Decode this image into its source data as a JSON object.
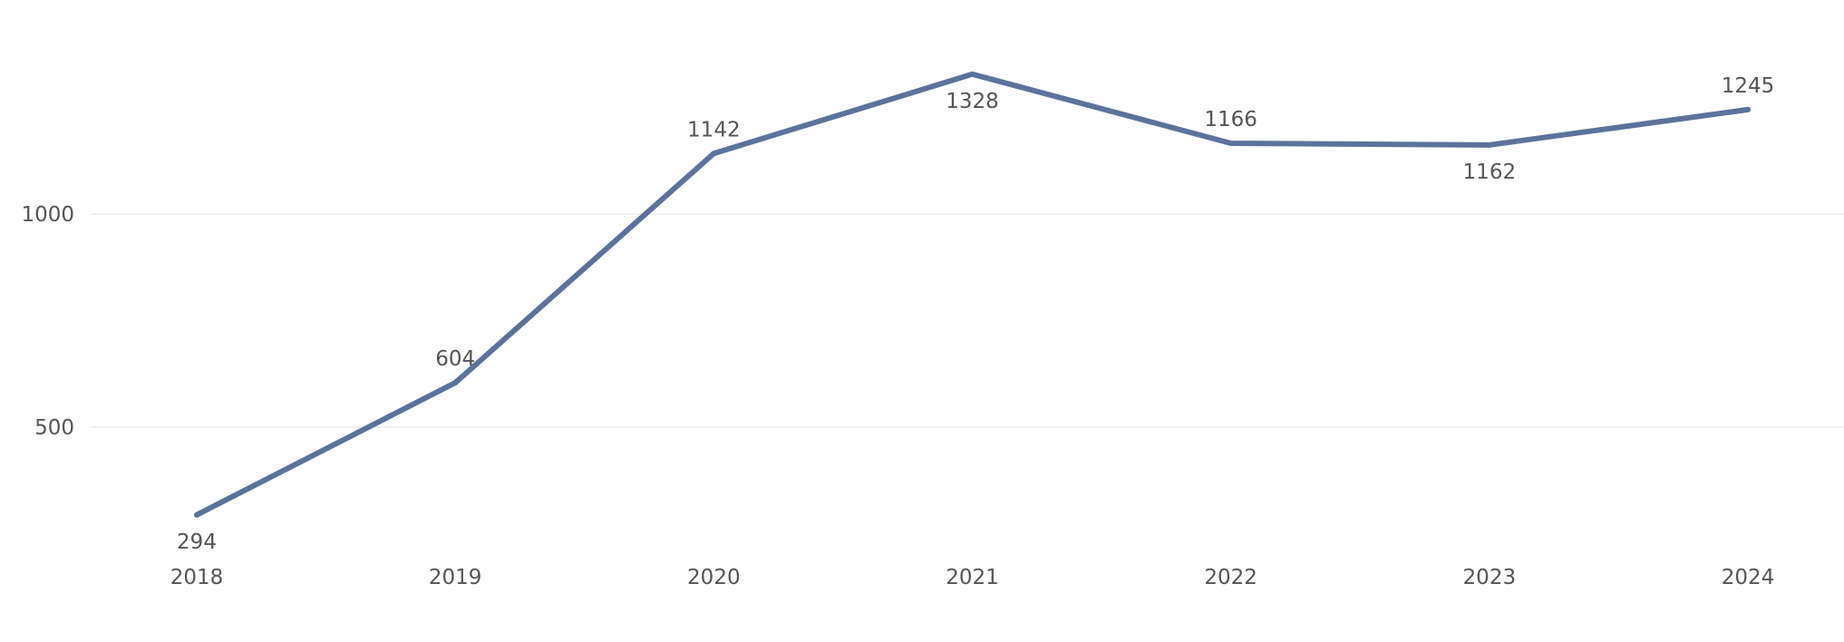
{
  "chart_data": {
    "type": "line",
    "title": "",
    "xlabel": "",
    "ylabel": "",
    "categories": [
      "2018",
      "2019",
      "2020",
      "2021",
      "2022",
      "2023",
      "2024"
    ],
    "series": [
      {
        "values": [
          294,
          604,
          1142,
          1328,
          1166,
          1162,
          1245
        ],
        "label_positions": [
          "below",
          "above",
          "above",
          "below",
          "above",
          "below",
          "above"
        ]
      }
    ],
    "y_ticks": [
      500,
      1000
    ],
    "ylim": [
      0,
      1400
    ],
    "grid": true,
    "legend": "none",
    "colors": {
      "line": "#5b739b",
      "grid": "#ececec",
      "text": "#555555"
    }
  }
}
